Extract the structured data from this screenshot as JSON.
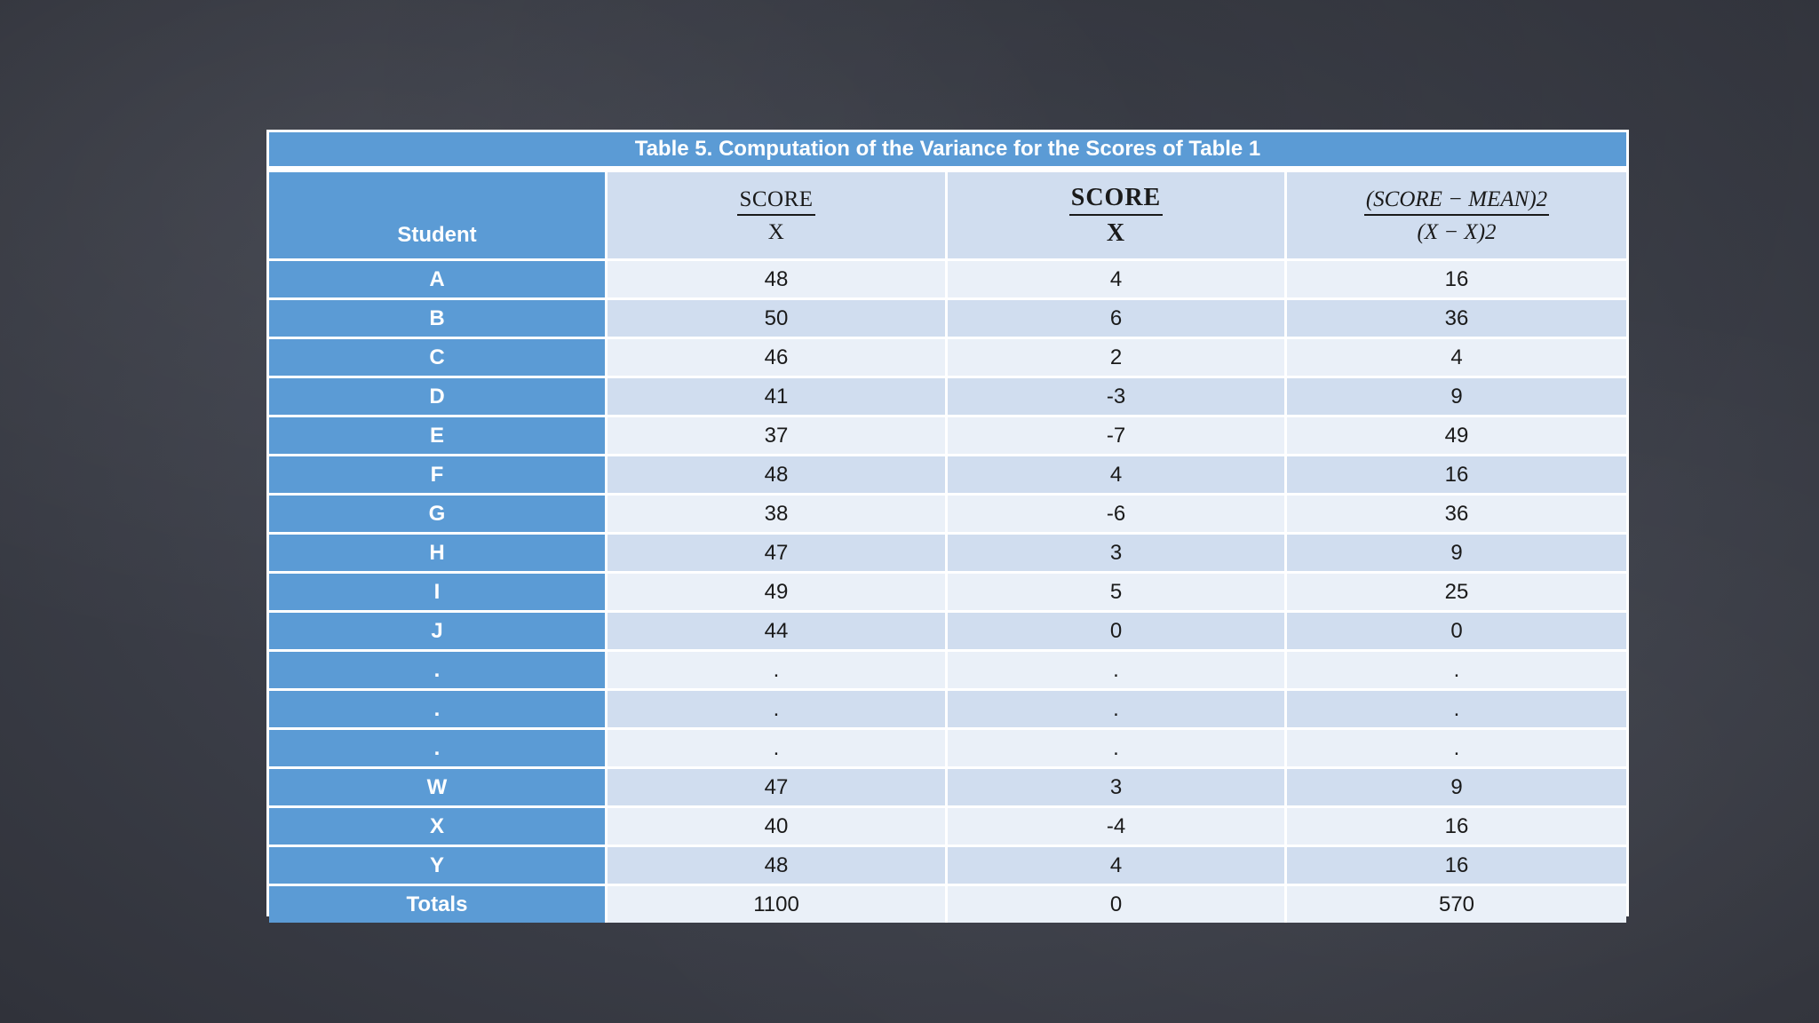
{
  "title": "Table 5. Computation of the Variance for the Scores of Table 1",
  "headers": {
    "student": "Student",
    "col1": {
      "num": "SCORE",
      "den": "X"
    },
    "col2": {
      "num": "SCORE",
      "den": "X"
    },
    "col3": {
      "num": "(SCORE − MEAN)2",
      "den": "(X − X)2"
    }
  },
  "rows": [
    {
      "student": "A",
      "c1": "48",
      "c2": "4",
      "c3": "16"
    },
    {
      "student": "B",
      "c1": "50",
      "c2": "6",
      "c3": "36"
    },
    {
      "student": "C",
      "c1": "46",
      "c2": "2",
      "c3": "4"
    },
    {
      "student": "D",
      "c1": "41",
      "c2": "-3",
      "c3": "9"
    },
    {
      "student": "E",
      "c1": "37",
      "c2": "-7",
      "c3": "49"
    },
    {
      "student": "F",
      "c1": "48",
      "c2": "4",
      "c3": "16"
    },
    {
      "student": "G",
      "c1": "38",
      "c2": "-6",
      "c3": "36"
    },
    {
      "student": "H",
      "c1": "47",
      "c2": "3",
      "c3": "9"
    },
    {
      "student": "I",
      "c1": "49",
      "c2": "5",
      "c3": "25"
    },
    {
      "student": "J",
      "c1": "44",
      "c2": "0",
      "c3": "0"
    },
    {
      "student": ".",
      "c1": ".",
      "c2": ".",
      "c3": "."
    },
    {
      "student": ".",
      "c1": ".",
      "c2": ".",
      "c3": "."
    },
    {
      "student": ".",
      "c1": ".",
      "c2": ".",
      "c3": "."
    },
    {
      "student": "W",
      "c1": "47",
      "c2": "3",
      "c3": "9"
    },
    {
      "student": "X",
      "c1": "40",
      "c2": "-4",
      "c3": "16"
    },
    {
      "student": "Y",
      "c1": "48",
      "c2": "4",
      "c3": "16"
    }
  ],
  "totals": {
    "label": "Totals",
    "c1": "1100",
    "c2": "0",
    "c3": "570"
  },
  "colors": {
    "header_blue": "#5b9bd5",
    "row_light": "#eaf0f8",
    "row_dark": "#d0ddef",
    "background": "#3e414b"
  }
}
